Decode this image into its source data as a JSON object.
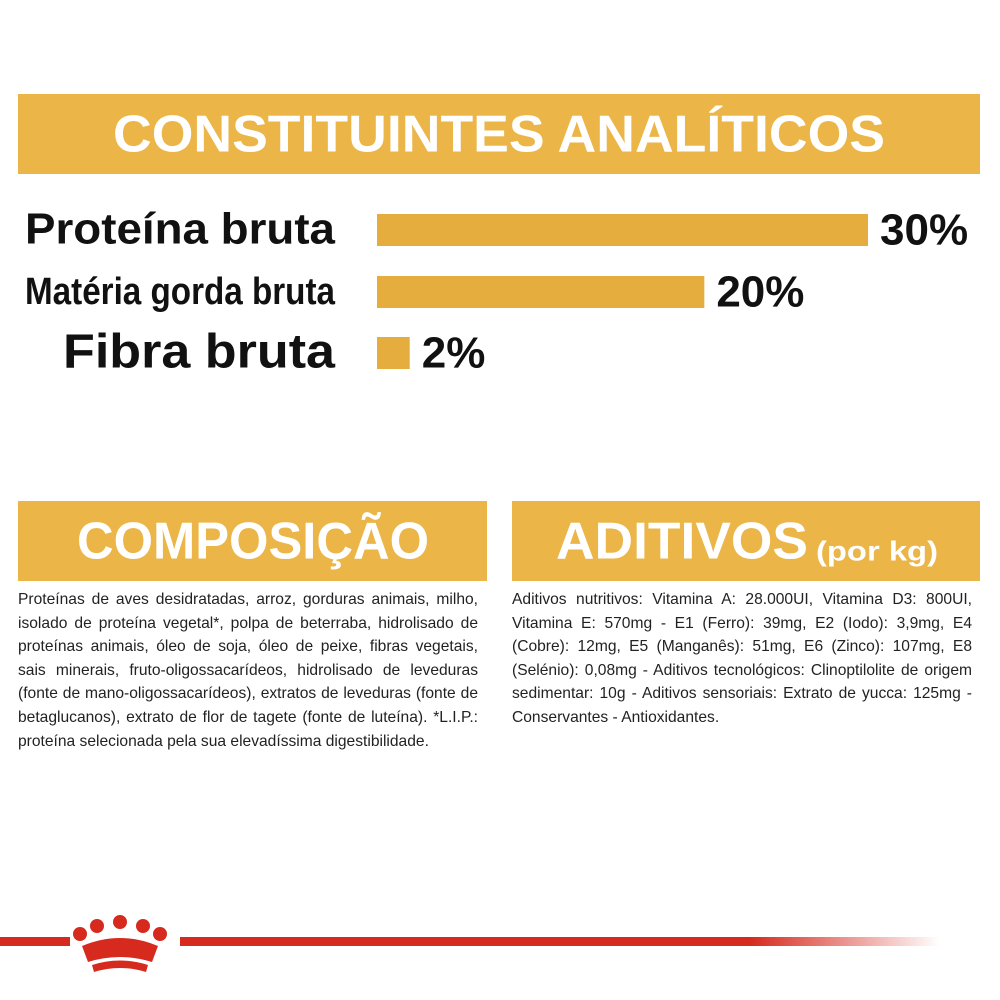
{
  "chart_data": {
    "type": "bar",
    "orientation": "horizontal",
    "title": "CONSTITUINTES ANALÍTICOS",
    "categories": [
      "Proteína bruta",
      "Matéria gorda bruta",
      "Fibra bruta"
    ],
    "values": [
      30,
      20,
      2
    ],
    "value_labels": [
      "30%",
      "20%",
      "2%"
    ],
    "color": "#e4ad3e",
    "xlim": [
      0,
      30
    ]
  },
  "composition": {
    "title": "COMPOSIÇÃO",
    "text": "Proteínas de aves desidratadas, arroz, gorduras animais, milho, isolado de proteína vegetal*, polpa de beterraba, hidrolisado de proteínas animais, óleo de soja, óleo de peixe, fibras vegetais, sais minerais, fruto-oligossacarídeos, hidrolisado de leveduras (fonte de mano-oligossacarídeos), extratos de leveduras (fonte de betaglucanos), extrato de flor de tagete (fonte de luteína). *L.I.P.: proteína selecionada pela sua elevadíssima digestibilidade."
  },
  "additives": {
    "title": "ADITIVOS",
    "subtitle": "(por kg)",
    "text": "Aditivos nutritivos: Vitamina A: 28.000UI, Vitamina D3: 800UI, Vitamina E: 570mg - E1 (Ferro): 39mg, E2 (Iodo): 3,9mg, E4 (Cobre): 12mg, E5 (Manganês): 51mg, E6 (Zinco): 107mg, E8 (Selénio): 0,08mg - Aditivos tecnológicos: Clinoptilolite de origem sedimentar: 10g - Aditivos sensoriais: Extrato de yucca: 125mg - Conservantes - Antioxidantes."
  }
}
